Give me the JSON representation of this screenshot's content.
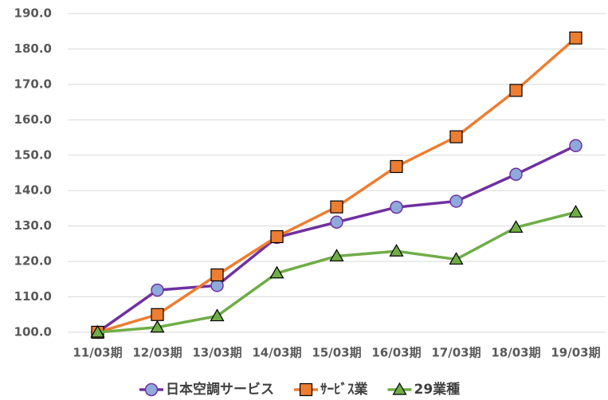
{
  "chart_data": {
    "type": "line",
    "categories": [
      "11/03期",
      "12/03期",
      "13/03期",
      "14/03期",
      "15/03期",
      "16/03期",
      "17/03期",
      "18/03期",
      "19/03期"
    ],
    "series": [
      {
        "name": "日本空調サービス",
        "color": "#7030a0",
        "marker": "circle",
        "marker_color": "#8eaadb",
        "values": [
          100,
          111.9,
          113.2,
          126.8,
          131.1,
          135.3,
          137.0,
          144.6,
          152.7
        ]
      },
      {
        "name": "ｻｰﾋﾞｽ業",
        "color": "#ed7d31",
        "marker": "square",
        "marker_color": "#ed7d31",
        "values": [
          100,
          105.0,
          116.2,
          127.0,
          135.4,
          146.8,
          155.2,
          168.3,
          183.1
        ]
      },
      {
        "name": "29業種",
        "color": "#70ad47",
        "marker": "triangle",
        "marker_color": "#70ad47",
        "values": [
          100,
          101.4,
          104.6,
          116.7,
          121.5,
          122.9,
          120.6,
          129.6,
          133.9
        ]
      }
    ],
    "ylim": [
      100,
      190
    ],
    "yticks": [
      {
        "value": 100,
        "label": "100.0"
      },
      {
        "value": 110,
        "label": "110.0"
      },
      {
        "value": 120,
        "label": "120.0"
      },
      {
        "value": 130,
        "label": "130.0"
      },
      {
        "value": 140,
        "label": "140.0"
      },
      {
        "value": 150,
        "label": "150.0"
      },
      {
        "value": 160,
        "label": "160.0"
      },
      {
        "value": 170,
        "label": "170.0"
      },
      {
        "value": 180,
        "label": "180.0"
      },
      {
        "value": 190,
        "label": "190.0"
      }
    ],
    "grid": true,
    "legend": "bottom"
  }
}
